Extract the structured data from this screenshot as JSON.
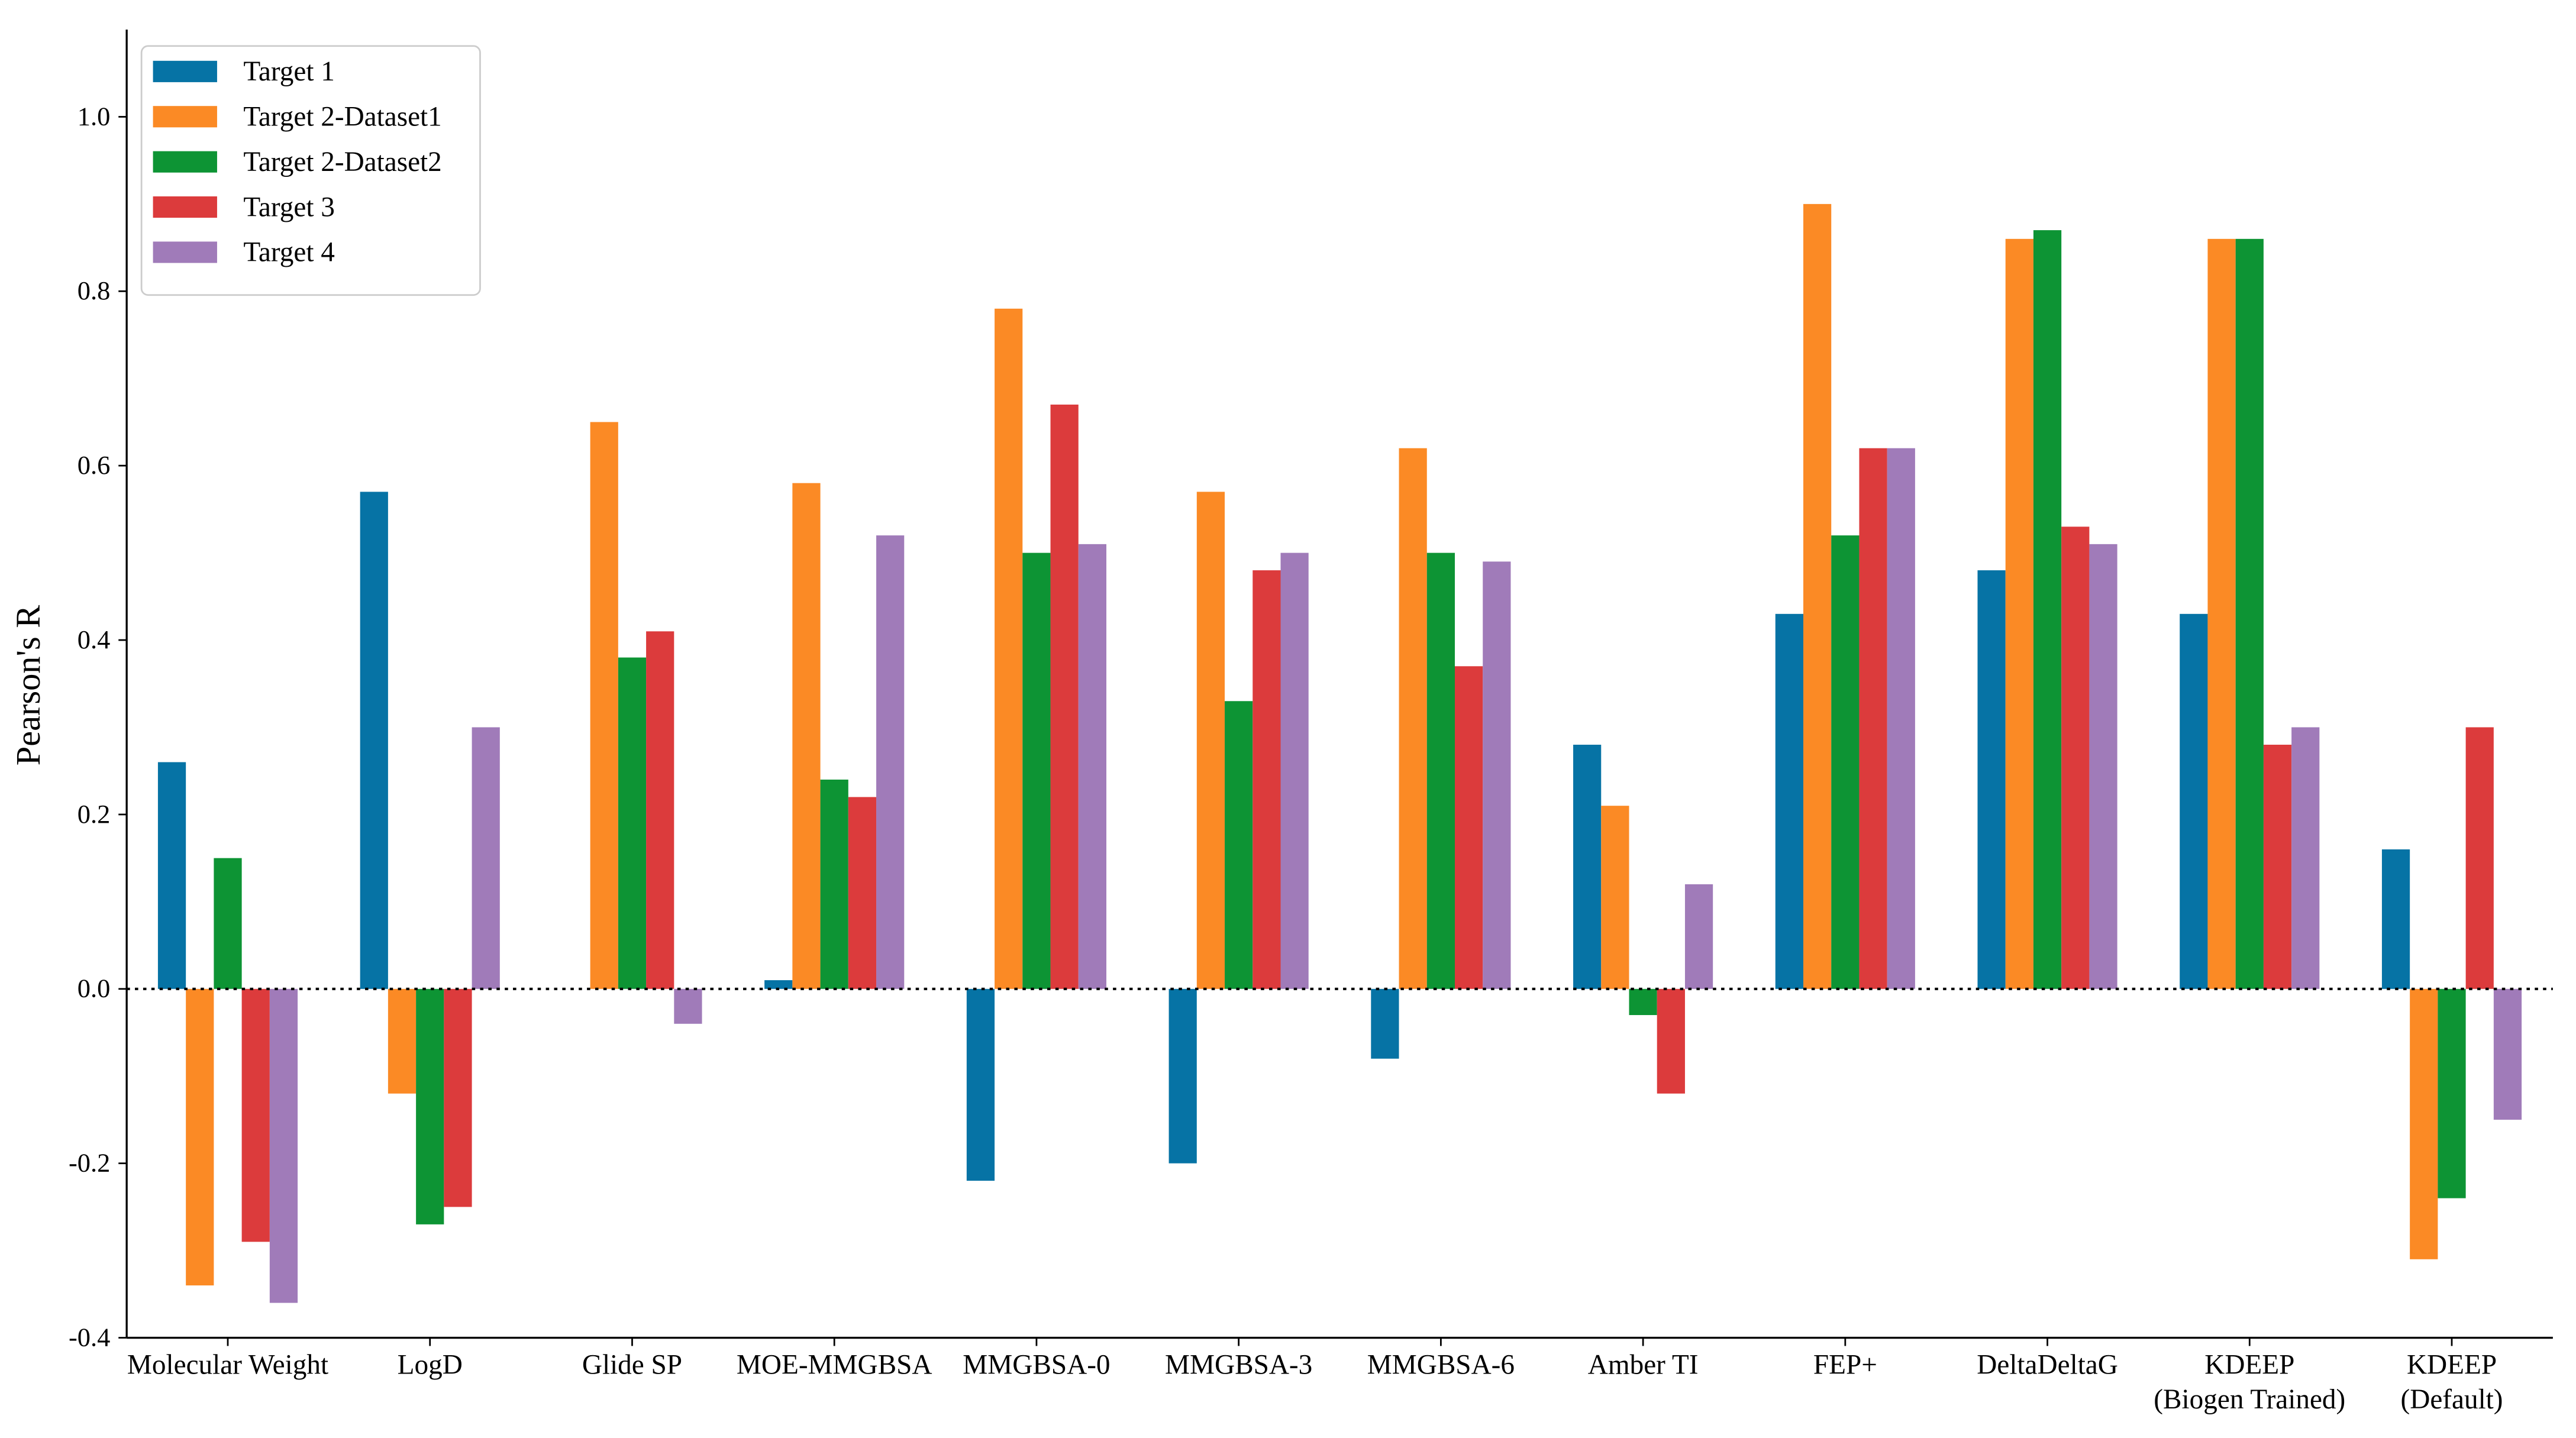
{
  "chart_data": {
    "type": "bar",
    "y_label": "Pearson's R",
    "categories": [
      "Molecular Weight",
      "LogD",
      "Glide SP",
      "MOE-MMGBSA",
      "MMGBSA-0",
      "MMGBSA-3",
      "MMGBSA-6",
      "Amber TI",
      "FEP+",
      "DeltaDeltaG",
      "KDEEP\n(Biogen Trained)",
      "KDEEP\n(Default)"
    ],
    "series": [
      {
        "name": "Target 1",
        "color": "#0673a5",
        "values": [
          0.26,
          0.57,
          0,
          0.01,
          -0.22,
          -0.2,
          -0.08,
          0.28,
          0.43,
          0.48,
          0.43,
          0.16
        ]
      },
      {
        "name": "Target 2-Dataset1",
        "color": "#fb8a25",
        "values": [
          -0.34,
          -0.12,
          0.65,
          0.58,
          0.78,
          0.57,
          0.62,
          0.21,
          0.9,
          0.86,
          0.86,
          -0.31
        ]
      },
      {
        "name": "Target 2-Dataset2",
        "color": "#0d9434",
        "values": [
          0.15,
          -0.27,
          0.38,
          0.24,
          0.5,
          0.33,
          0.5,
          -0.03,
          0.52,
          0.87,
          0.86,
          -0.24
        ]
      },
      {
        "name": "Target 3",
        "color": "#dc3b3c",
        "values": [
          -0.29,
          -0.25,
          0.41,
          0.22,
          0.67,
          0.48,
          0.37,
          -0.12,
          0.62,
          0.53,
          0.28,
          0.3
        ]
      },
      {
        "name": "Target 4",
        "color": "#a07bb9",
        "values": [
          -0.36,
          0.3,
          -0.04,
          0.52,
          0.51,
          0.5,
          0.49,
          0.12,
          0.62,
          0.51,
          0.3,
          -0.15
        ]
      }
    ],
    "ylim": [
      -0.4,
      1.1
    ],
    "yticks": [
      -0.4,
      -0.2,
      {
        "value": 0,
        "label": "0.0"
      },
      0.2,
      0.4,
      0.6,
      0.8,
      {
        "value": 1,
        "label": "1.0"
      }
    ],
    "zero_line": true,
    "legend": "upper left"
  }
}
